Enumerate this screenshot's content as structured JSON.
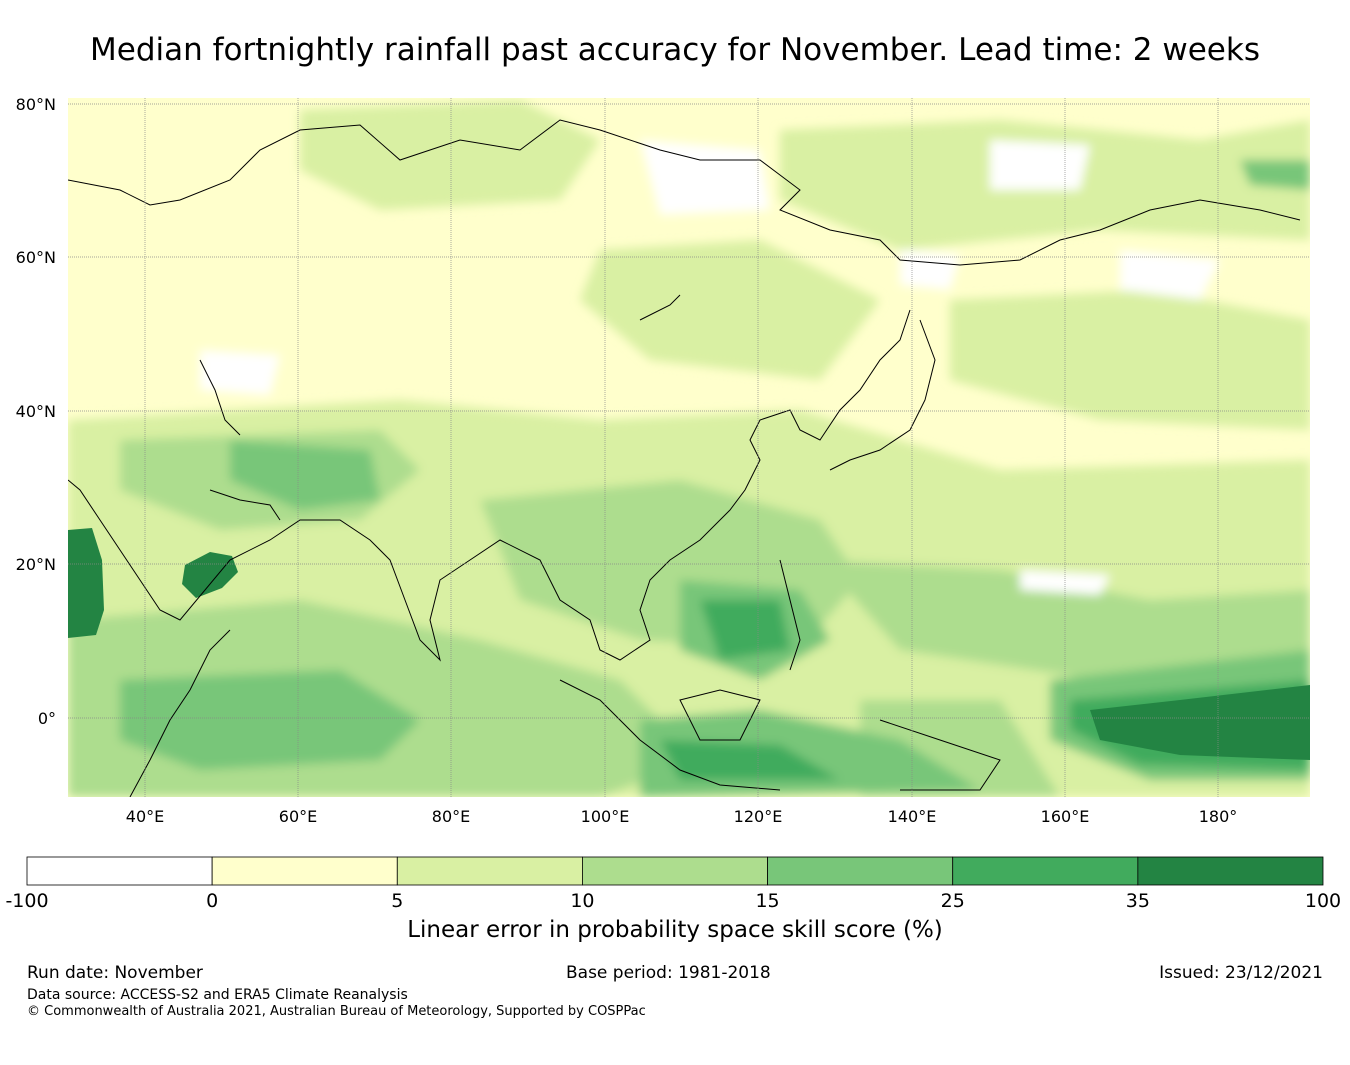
{
  "title": "Median fortnightly rainfall past accuracy for November. Lead time: 2 weeks",
  "map": {
    "lat_labels": [
      "80°N",
      "60°N",
      "40°N",
      "20°N",
      "0°"
    ],
    "lon_labels": [
      "40°E",
      "60°E",
      "80°E",
      "100°E",
      "120°E",
      "140°E",
      "160°E",
      "180°"
    ]
  },
  "colorbar": {
    "ticks": [
      "-100",
      "0",
      "5",
      "10",
      "15",
      "25",
      "35",
      "100"
    ],
    "colors": [
      "#ffffff",
      "#ffffcc",
      "#d9f0a3",
      "#addd8e",
      "#78c679",
      "#41ab5d",
      "#238443"
    ],
    "label": "Linear error in probability space skill score (%)"
  },
  "footer": {
    "run_date": "Run date: November",
    "base_period": "Base period: 1981-2018",
    "issued": "Issued: 23/12/2021",
    "data_source": "Data source: ACCESS-S2 and ERA5 Climate Reanalysis",
    "copyright": "© Commonwealth of Australia 2021, Australian Bureau of Meteorology, Supported by COSPPac"
  }
}
